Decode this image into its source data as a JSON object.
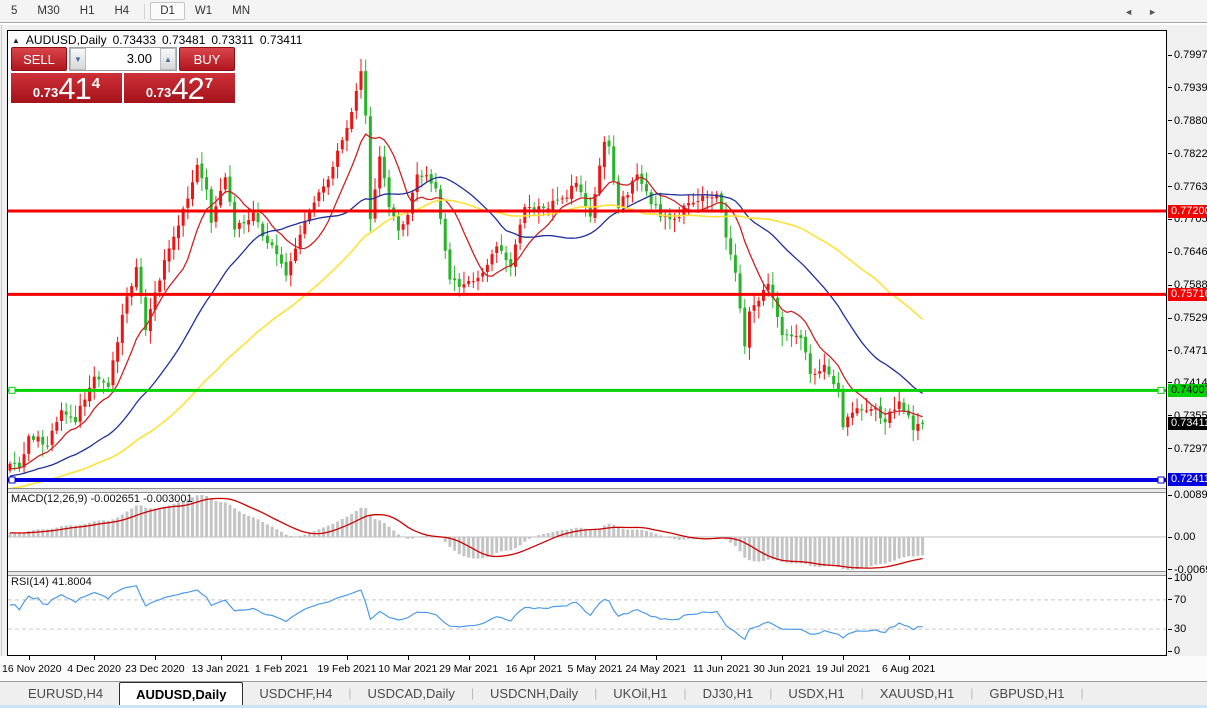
{
  "toolbar": {
    "items": [
      "5",
      "M30",
      "H1",
      "H4",
      "D1",
      "W1",
      "MN"
    ],
    "active": "D1"
  },
  "header": {
    "collapse_icon": "▲",
    "symbol": "AUDUSD,Daily",
    "open": "0.73433",
    "high": "0.73481",
    "low": "0.73311",
    "close": "0.73411"
  },
  "trade_panel": {
    "sell_label": "SELL",
    "buy_label": "BUY",
    "volume": "3.00",
    "down_arrow": "▼",
    "up_arrow": "▲",
    "sell_price": {
      "prefix": "0.73",
      "big": "41",
      "sup": "4"
    },
    "buy_price": {
      "prefix": "0.73",
      "big": "42",
      "sup": "7"
    }
  },
  "indicators": {
    "macd": {
      "label": "MACD(12,26,9)",
      "values": "-0.002651 -0.003001",
      "params": {
        "fast": 12,
        "slow": 26,
        "signal": 9
      },
      "axis": [
        {
          "label": "0.008903",
          "value": 0.008903
        },
        {
          "label": "0.00",
          "value": 0
        },
        {
          "label": "-0.00697",
          "value": -0.00697
        }
      ]
    },
    "rsi": {
      "label": "RSI(14)",
      "value": "41.8004",
      "period": 14,
      "levels": [
        70,
        30
      ],
      "axis": [
        {
          "label": "100",
          "value": 100
        },
        {
          "label": "70",
          "value": 70
        },
        {
          "label": "30",
          "value": 30
        },
        {
          "label": "0",
          "value": 0
        }
      ]
    }
  },
  "price_axis": {
    "labels": [
      "0.79975",
      "0.79390",
      "0.78805",
      "0.78220",
      "0.77635",
      "0.77050",
      "0.76465",
      "0.75880",
      "0.75295",
      "0.74710",
      "0.74140",
      "0.73555",
      "0.72970"
    ],
    "badges": [
      {
        "label": "0.77200",
        "type": "red"
      },
      {
        "label": "0.75716",
        "type": "red"
      },
      {
        "label": "0.74007",
        "type": "green"
      },
      {
        "label": "0.73411",
        "type": "current"
      },
      {
        "label": "0.72411",
        "type": "blue"
      }
    ]
  },
  "date_axis": {
    "ticks": [
      {
        "label": "16 Nov 2020",
        "bar": 4
      },
      {
        "label": "4 Dec 2020",
        "bar": 18
      },
      {
        "label": "23 Dec 2020",
        "bar": 31
      },
      {
        "label": "13 Jan 2021",
        "bar": 45
      },
      {
        "label": "1 Feb 2021",
        "bar": 58
      },
      {
        "label": "19 Feb 2021",
        "bar": 72
      },
      {
        "label": "10 Mar 2021",
        "bar": 85
      },
      {
        "label": "29 Mar 2021",
        "bar": 98
      },
      {
        "label": "16 Apr 2021",
        "bar": 112
      },
      {
        "label": "5 May 2021",
        "bar": 125
      },
      {
        "label": "24 May 2021",
        "bar": 138
      },
      {
        "label": "11 Jun 2021",
        "bar": 152
      },
      {
        "label": "30 Jun 2021",
        "bar": 165
      },
      {
        "label": "19 Jul 2021",
        "bar": 178
      },
      {
        "label": "6 Aug 2021",
        "bar": 192
      }
    ]
  },
  "tabs": {
    "items": [
      "EURUSD,H4",
      "AUDUSD,Daily",
      "USDCHF,H4",
      "USDCAD,Daily",
      "USDCNH,Daily",
      "UKOil,H1",
      "DJ30,H1",
      "USDX,H1",
      "XAUUSD,H1",
      "GBPUSD,H1"
    ],
    "active": "AUDUSD,Daily",
    "scroll_left": "◄",
    "scroll_right": "►"
  },
  "chart_data": {
    "type": "candlestick",
    "symbol": "AUDUSD",
    "timeframe": "Daily",
    "bars": 196,
    "last_bar": {
      "open": 0.73433,
      "high": 0.73481,
      "low": 0.73311,
      "close": 0.73411
    },
    "anchors": [
      [
        0,
        0.727
      ],
      [
        2,
        0.7262
      ],
      [
        4,
        0.7319
      ],
      [
        8,
        0.7302
      ],
      [
        11,
        0.7365
      ],
      [
        14,
        0.7344
      ],
      [
        15,
        0.7373
      ],
      [
        18,
        0.7425
      ],
      [
        21,
        0.7407
      ],
      [
        24,
        0.7535
      ],
      [
        27,
        0.762
      ],
      [
        29,
        0.7508
      ],
      [
        31,
        0.7575
      ],
      [
        36,
        0.7694
      ],
      [
        40,
        0.7802
      ],
      [
        42,
        0.7758
      ],
      [
        43,
        0.7699
      ],
      [
        46,
        0.778
      ],
      [
        48,
        0.7687
      ],
      [
        52,
        0.7717
      ],
      [
        55,
        0.7663
      ],
      [
        57,
        0.7643
      ],
      [
        59,
        0.7605
      ],
      [
        62,
        0.7678
      ],
      [
        65,
        0.7735
      ],
      [
        68,
        0.7776
      ],
      [
        72,
        0.7868
      ],
      [
        75,
        0.7969
      ],
      [
        76,
        0.789
      ],
      [
        77,
        0.7706
      ],
      [
        79,
        0.7817
      ],
      [
        81,
        0.7727
      ],
      [
        83,
        0.7685
      ],
      [
        85,
        0.7713
      ],
      [
        87,
        0.7785
      ],
      [
        91,
        0.776
      ],
      [
        94,
        0.7598
      ],
      [
        96,
        0.7585
      ],
      [
        99,
        0.7595
      ],
      [
        101,
        0.761
      ],
      [
        104,
        0.7657
      ],
      [
        107,
        0.762
      ],
      [
        110,
        0.7727
      ],
      [
        114,
        0.7725
      ],
      [
        117,
        0.774
      ],
      [
        121,
        0.777
      ],
      [
        124,
        0.771
      ],
      [
        127,
        0.7843
      ],
      [
        128,
        0.7835
      ],
      [
        130,
        0.7725
      ],
      [
        134,
        0.7785
      ],
      [
        137,
        0.7732
      ],
      [
        142,
        0.7706
      ],
      [
        147,
        0.7738
      ],
      [
        151,
        0.775
      ],
      [
        155,
        0.761
      ],
      [
        157,
        0.7479
      ],
      [
        158,
        0.7541
      ],
      [
        162,
        0.759
      ],
      [
        165,
        0.7499
      ],
      [
        169,
        0.7494
      ],
      [
        171,
        0.743
      ],
      [
        174,
        0.7446
      ],
      [
        177,
        0.7399
      ],
      [
        178,
        0.7335
      ],
      [
        180,
        0.7361
      ],
      [
        182,
        0.7365
      ],
      [
        185,
        0.737
      ],
      [
        187,
        0.7344
      ],
      [
        188,
        0.7363
      ],
      [
        190,
        0.7381
      ],
      [
        192,
        0.7356
      ],
      [
        193,
        0.733
      ],
      [
        194,
        0.7341
      ],
      [
        195,
        0.73411
      ]
    ],
    "moving_averages": [
      {
        "period": 10,
        "color": "#CC2222"
      },
      {
        "period": 30,
        "color": "#20309B"
      },
      {
        "period": 60,
        "color": "#FFE135"
      }
    ],
    "hlines": [
      {
        "price": 0.772,
        "color": "#F50000",
        "width": 3,
        "handles": false
      },
      {
        "price": 0.75716,
        "color": "#F50000",
        "width": 3,
        "handles": false
      },
      {
        "price": 0.74007,
        "color": "#00D300",
        "width": 3,
        "handles": true
      },
      {
        "price": 0.72411,
        "color": "#0000E0",
        "width": 4,
        "handles": true
      }
    ],
    "colors": {
      "up": "#EE1414",
      "down": "#28B428",
      "macd_hist": "#C4C4C4",
      "macd_signal": "#CC0000",
      "rsi": "#4D9BE6",
      "panel_red": "#C1272D"
    }
  }
}
